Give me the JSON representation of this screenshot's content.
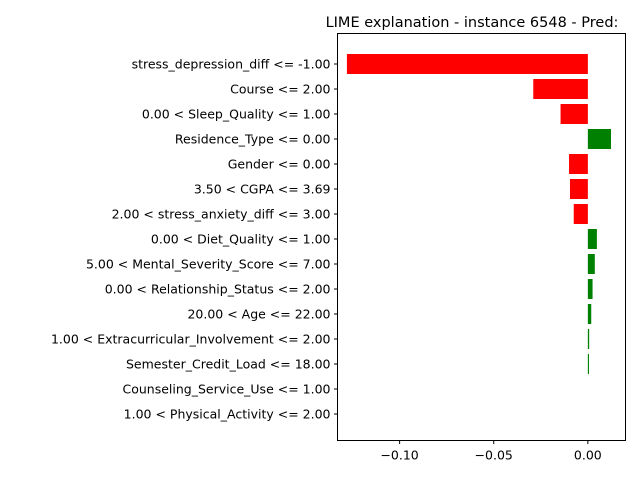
{
  "chart_data": {
    "type": "bar",
    "orientation": "horizontal",
    "title": "LIME explanation - instance 6548 - Pred:",
    "xlabel": "",
    "ylabel": "",
    "xlim": [
      -0.133,
      0.02
    ],
    "xticks": [
      -0.1,
      -0.05,
      0.0
    ],
    "xtick_labels": [
      "−0.10",
      "−0.05",
      "0.00"
    ],
    "grid": false,
    "colors": {
      "negative": "#ff0000",
      "positive": "#008000"
    },
    "categories": [
      "stress_depression_diff <= -1.00",
      "Course <= 2.00",
      "0.00 < Sleep_Quality <= 1.00",
      "Residence_Type <= 0.00",
      "Gender <= 0.00",
      "3.50 < CGPA <= 3.69",
      "2.00 < stress_anxiety_diff <= 3.00",
      "0.00 < Diet_Quality <= 1.00",
      "5.00 < Mental_Severity_Score <= 7.00",
      "0.00 < Relationship_Status <= 2.00",
      "20.00 < Age <= 22.00",
      "1.00 < Extracurricular_Involvement <= 2.00",
      "Semester_Credit_Load <= 18.00",
      "Counseling_Service_Use <= 1.00",
      "1.00 < Physical_Activity <= 2.00"
    ],
    "values": [
      -0.128,
      -0.029,
      -0.0145,
      0.0123,
      -0.01,
      -0.0095,
      -0.0075,
      0.0048,
      0.0037,
      0.0025,
      0.0018,
      0.0007,
      0.0006,
      0.0,
      0.0
    ]
  }
}
